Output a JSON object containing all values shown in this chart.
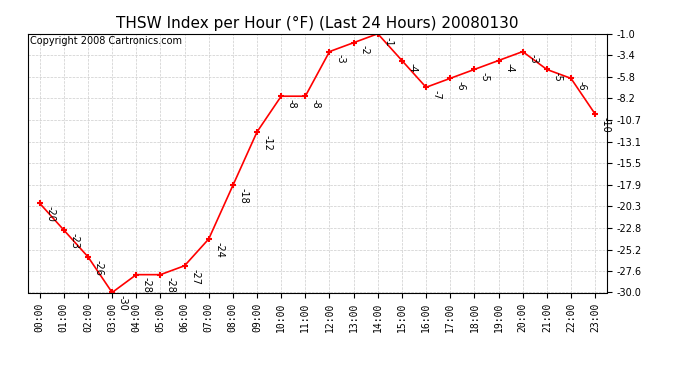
{
  "title": "THSW Index per Hour (°F) (Last 24 Hours) 20080130",
  "copyright": "Copyright 2008 Cartronics.com",
  "hours": [
    "00:00",
    "01:00",
    "02:00",
    "03:00",
    "04:00",
    "05:00",
    "06:00",
    "07:00",
    "08:00",
    "09:00",
    "10:00",
    "11:00",
    "12:00",
    "13:00",
    "14:00",
    "15:00",
    "16:00",
    "17:00",
    "18:00",
    "19:00",
    "20:00",
    "21:00",
    "22:00",
    "23:00"
  ],
  "values": [
    -20,
    -23,
    -26,
    -30,
    -28,
    -28,
    -27,
    -24,
    -18,
    -12,
    -8,
    -8,
    -3,
    -2,
    -1,
    -4,
    -7,
    -6,
    -5,
    -4,
    -3,
    -5,
    -6,
    -10
  ],
  "ylim": [
    -30.0,
    -1.0
  ],
  "yticks": [
    -30.0,
    -27.6,
    -25.2,
    -22.8,
    -20.3,
    -17.9,
    -15.5,
    -13.1,
    -10.7,
    -8.2,
    -5.8,
    -3.4,
    -1.0
  ],
  "line_color": "red",
  "marker": "+",
  "marker_size": 5,
  "marker_linewidth": 1.5,
  "grid_color": "#cccccc",
  "bg_color": "#ffffff",
  "fig_bg_color": "#ffffff",
  "title_fontsize": 11,
  "label_fontsize": 7,
  "tick_fontsize": 7,
  "copyright_fontsize": 7,
  "annotation_color": "black"
}
